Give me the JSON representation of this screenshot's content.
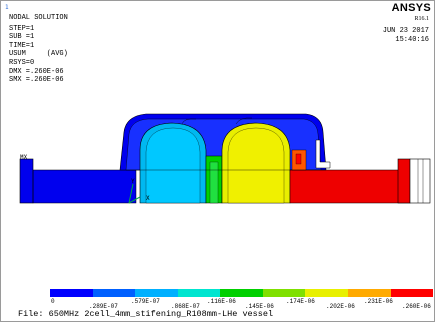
{
  "window": {
    "index": "1"
  },
  "header": {
    "title": "NODAL SOLUTION",
    "lines": [
      "STEP=1",
      "SUB =1",
      "TIME=1",
      "USUM     (AVG)",
      "RSYS=0",
      "DMX =.260E-06",
      "SMX =.260E-06"
    ]
  },
  "brand": {
    "name": "ANSYS",
    "version": "R16.1"
  },
  "timestamp": {
    "date": "JUN 23 2017",
    "time": "15:40:16"
  },
  "triad": {
    "mx": "MX",
    "y": "Y",
    "x": "X"
  },
  "legend": {
    "colors": [
      "#0000ff",
      "#0060ff",
      "#00b0ff",
      "#00e5d0",
      "#00d000",
      "#7fe000",
      "#e8f000",
      "#ffaa00",
      "#ff0000"
    ],
    "top_labels": [
      ".579E-07",
      ".116E-06",
      ".174E-06",
      ".231E-06"
    ],
    "bottom_labels": [
      "0",
      ".289E-07",
      ".868E-07",
      ".145E-06",
      ".202E-06",
      ".260E-06"
    ]
  },
  "footer": {
    "file_label": "File:",
    "file_name": "650MHz 2cell_4mm_stifening_R108mm-LHe vessel"
  }
}
